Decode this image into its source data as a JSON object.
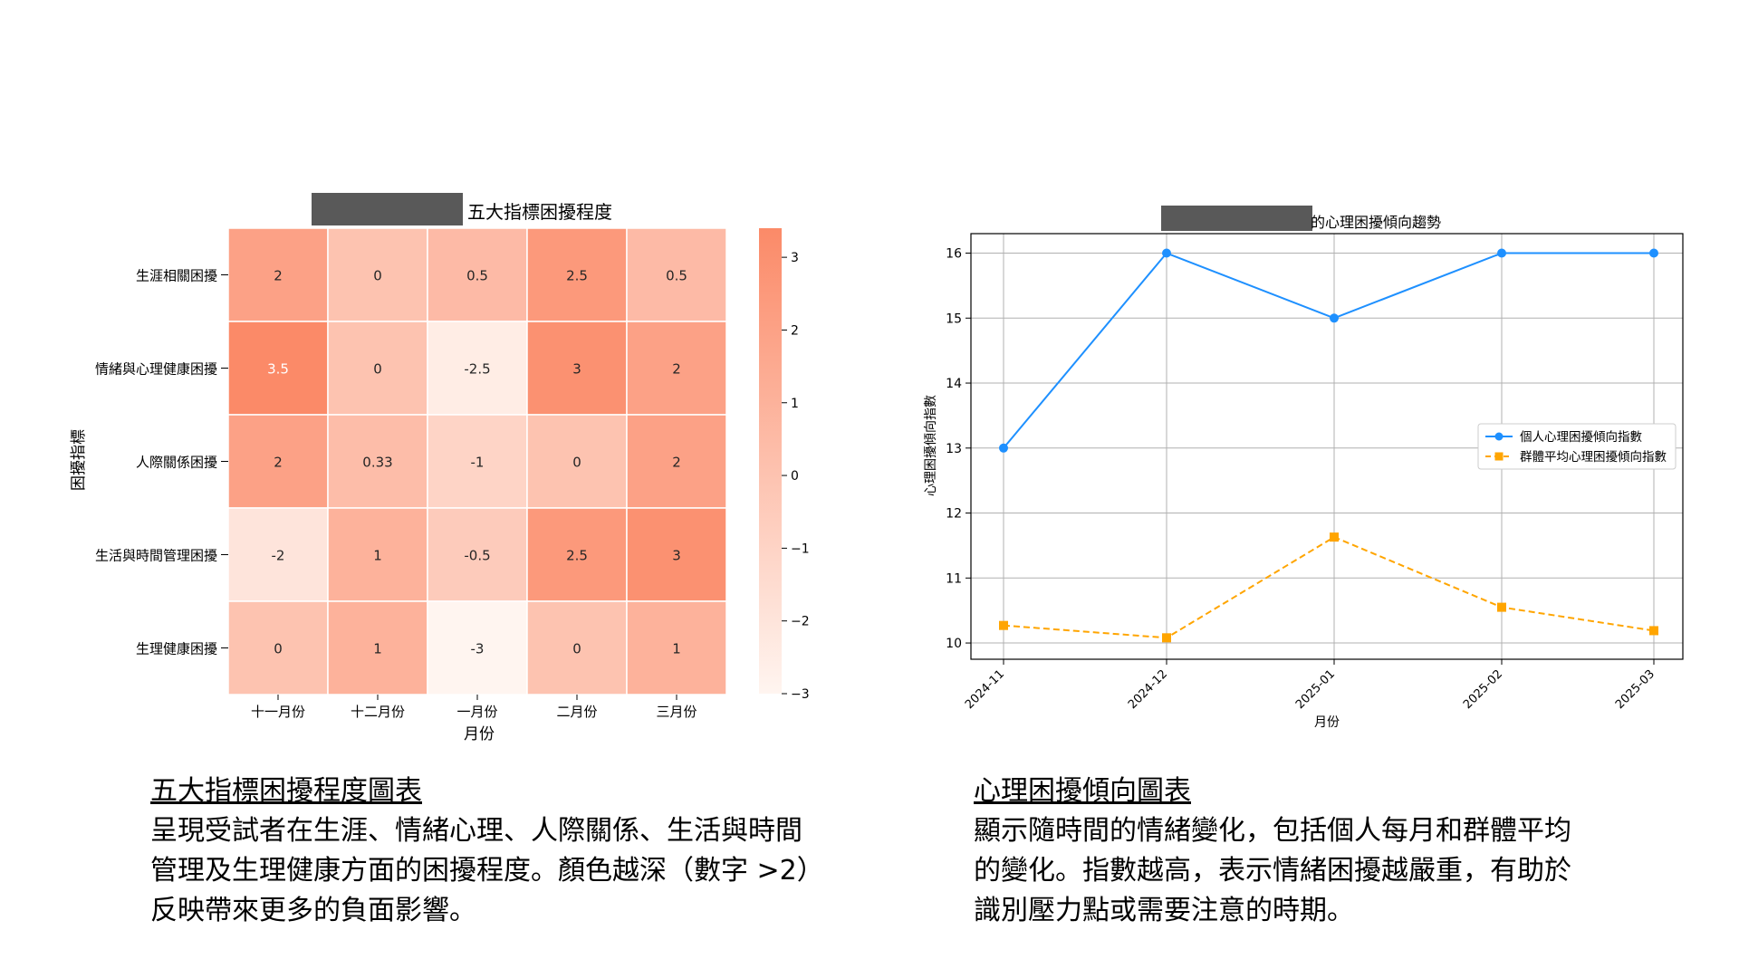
{
  "chart_data": [
    {
      "type": "heatmap",
      "title": "五大指標困擾程度",
      "xlabel": "月份",
      "ylabel": "困擾指標",
      "x_categories": [
        "十一月份",
        "十二月份",
        "一月份",
        "二月份",
        "三月份"
      ],
      "y_categories": [
        "生涯相關困擾",
        "情緒與心理健康困擾",
        "人際關係困擾",
        "生活與時間管理困擾",
        "生理健康困擾"
      ],
      "values": [
        [
          2,
          0,
          0.5,
          2.5,
          0.5
        ],
        [
          3.5,
          0,
          -2.5,
          3,
          2
        ],
        [
          2,
          0.33,
          -1,
          0,
          2
        ],
        [
          -2,
          1,
          -0.5,
          2.5,
          3
        ],
        [
          0,
          1,
          -3,
          0,
          1
        ]
      ],
      "cell_labels": [
        [
          "2",
          "0",
          "0.5",
          "2.5",
          "0.5"
        ],
        [
          "3.5",
          "0",
          "-2.5",
          "3",
          "2"
        ],
        [
          "2",
          "0.33",
          "-1",
          "0",
          "2"
        ],
        [
          "-2",
          "1",
          "-0.5",
          "2.5",
          "3"
        ],
        [
          "0",
          "1",
          "-3",
          "0",
          "1"
        ]
      ],
      "colorbar": {
        "range": [
          -3,
          3.4
        ],
        "ticks": [
          3,
          2,
          1,
          0,
          -1,
          -2,
          -3
        ],
        "tick_labels": [
          "3",
          "2",
          "1",
          "0",
          "−1",
          "−2",
          "−3"
        ],
        "color_low": "#fff5f0",
        "color_high": "#fb8a68"
      }
    },
    {
      "type": "line",
      "title": "的心理困擾傾向趨勢",
      "xlabel": "月份",
      "ylabel": "心理困擾傾向指數",
      "x": [
        "2024-11",
        "2024-12",
        "2025-01",
        "2025-02",
        "2025-03"
      ],
      "ylim": [
        9.75,
        16.3
      ],
      "yticks": [
        10,
        11,
        12,
        13,
        14,
        15,
        16
      ],
      "grid": true,
      "legend_position": "center-right",
      "series": [
        {
          "name": "個人心理困擾傾向指數",
          "values": [
            13,
            16,
            15,
            16,
            16
          ],
          "color": "#1e90ff",
          "marker": "circle",
          "linestyle": "solid"
        },
        {
          "name": "群體平均心理困擾傾向指數",
          "values": [
            10.27,
            10.08,
            11.63,
            10.55,
            10.19
          ],
          "color": "#ffa500",
          "marker": "square",
          "linestyle": "dashed"
        }
      ]
    }
  ],
  "captions": {
    "left": {
      "title": "五大指標困擾程度圖表",
      "lines": [
        "呈現受試者在生涯、情緒心理、人際關係、生活與時間",
        "管理及生理健康方面的困擾程度。顏色越深（數字 >2）",
        "反映帶來更多的負面影響。"
      ]
    },
    "right": {
      "title": "心理困擾傾向圖表",
      "lines": [
        "顯示隨時間的情緒變化，包括個人每月和群體平均",
        "的變化。指數越高，表示情緒困擾越嚴重，有助於",
        "識別壓力點或需要注意的時期。"
      ]
    }
  },
  "colors": {
    "redaction": "#595959",
    "grid": "#b0b0b0"
  }
}
